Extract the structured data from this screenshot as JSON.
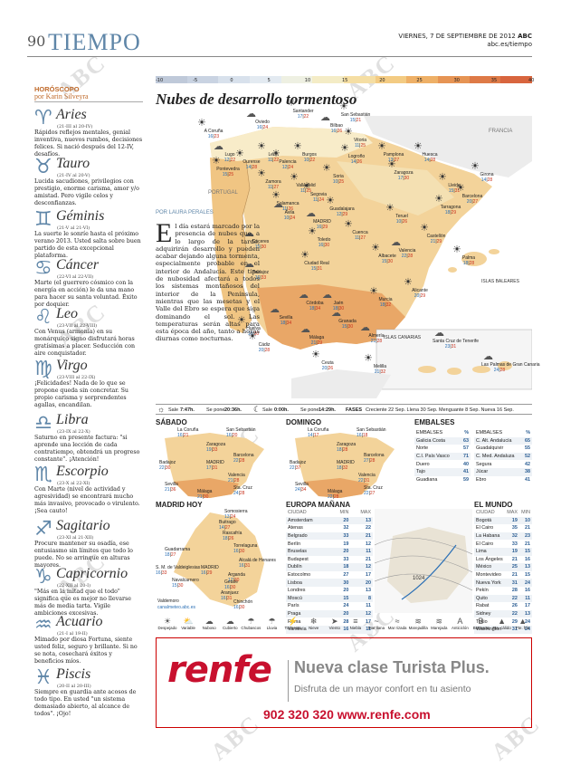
{
  "header": {
    "page_number": "90",
    "section": "TIEMPO",
    "date": "VIERNES, 7 DE SEPTIEMBRE DE 2012",
    "brand": "ABC",
    "site": "abc.es/tiempo"
  },
  "watermark": "ABC",
  "horoscope": {
    "kicker": "HORÓSCOPO",
    "author": "por Karin Silveyra",
    "signs": [
      {
        "name": "Aries",
        "symbol": "♈",
        "dates": "(21-III al 20-IV)",
        "text": "Rápidos reflejos mentales, genial inventiva, nuevos rumbos, decisiones felices. Si nació después del 12-IV, desafíos."
      },
      {
        "name": "Tauro",
        "symbol": "♉",
        "dates": "(21-IV al 20-V)",
        "text": "Lucida sacudiones, privilegios con prestigio, enorme carisma, amor y/o amistad. Pero vigile celos y desconfianzas."
      },
      {
        "name": "Géminis",
        "symbol": "♊",
        "dates": "(21-V al 21-VI)",
        "text": "La suerte le sonríe hasta el próximo verano 2013. Usted salta sobre buen partido de esta excepcional plataforma."
      },
      {
        "name": "Cáncer",
        "symbol": "♋",
        "dates": "(22-VI al 22-VII)",
        "text": "Marte (el guerrero cósmico con la energía en acción) le da una mano para hacer su santa voluntad. Éxito por doquier."
      },
      {
        "name": "Leo",
        "symbol": "♌",
        "dates": "(23-VII al 22-VIII)",
        "text": "Con Venus (armonía) en su monárquico signo disfrutará horas gratísimas a placer. Seducción con aire conquistador."
      },
      {
        "name": "Virgo",
        "symbol": "♍",
        "dates": "(23-VIII al 22-IX)",
        "text": "¡Felicidades! Nada de lo que se propone queda sin concretar. Su propio carisma y sorprendentes agallas, encandilan."
      },
      {
        "name": "Libra",
        "symbol": "♎",
        "dates": "(23-IX al 22-X)",
        "text": "Saturno en presente factura: \"si aprende una lección de cada contratiempo, obtendrá un progreso constante\". ¡Atención!"
      },
      {
        "name": "Escorpio",
        "symbol": "♏",
        "dates": "(23-X al 22-XI)",
        "text": "Con Marte (nivel de actividad y agresividad) se encontrará mucho más invasivo, provocado o virulento. ¡Sea cauto!"
      },
      {
        "name": "Sagitario",
        "symbol": "♐",
        "dates": "(23-XI al 21-XII)",
        "text": "Procure mantener su osadía, ese entusiasmo sin límites que todo lo puede. No se arrinque en alturas mayores."
      },
      {
        "name": "Capricornio",
        "symbol": "♑",
        "dates": "(22-XII al 20-I)",
        "text": "\"Más en la mitad que el todo\" significa que es mejor no llevarse más de media tarta. Vigile ambiciones excesivas."
      },
      {
        "name": "Acuario",
        "symbol": "♒",
        "dates": "(21-I al 19-II)",
        "text": "Mimado por diosa Fortuna, siente usted feliz, seguro y brillante. Si no se nota, cosechará éxitos y beneficios míos."
      },
      {
        "name": "Piscis",
        "symbol": "♓",
        "dates": "(20-II al 20-III)",
        "text": "Siempre en guardia ante acosos de todo tipo. En usted \"un sistema demasiado abierto, al alcance de todos\". ¡Ojo!"
      }
    ]
  },
  "scale": {
    "values": [
      "-10",
      "-5",
      "0",
      "5",
      "10",
      "15",
      "20",
      "25",
      "30",
      "35",
      "40"
    ],
    "colors": [
      "#bfc9d9",
      "#c9d3e2",
      "#d8e1ec",
      "#e3eaf1",
      "#eef0e2",
      "#f4ecc6",
      "#f5dea3",
      "#f3cb83",
      "#eeb067",
      "#e69454",
      "#de7a47",
      "#d8653e"
    ]
  },
  "map": {
    "title": "Nubes de desarrollo tormentoso",
    "labels": {
      "francia": "FRANCIA",
      "portugal": "PORTUGAL",
      "baleares": "ISLAS BALEARES",
      "canarias": "ISLAS CANARIAS"
    },
    "cities": [
      {
        "n": "A Coruña",
        "lo": "16",
        "hi": "23"
      },
      {
        "n": "Oviedo",
        "lo": "16",
        "hi": "24"
      },
      {
        "n": "Santander",
        "lo": "17",
        "hi": "22"
      },
      {
        "n": "Bilbao",
        "lo": "16",
        "hi": "26"
      },
      {
        "n": "San Sebastián",
        "lo": "15",
        "hi": "21"
      },
      {
        "n": "Vitoria",
        "lo": "11",
        "hi": "25"
      },
      {
        "n": "Pamplona",
        "lo": "13",
        "hi": "27"
      },
      {
        "n": "Huesca",
        "lo": "14",
        "hi": "28"
      },
      {
        "n": "Girona",
        "lo": "14",
        "hi": "28"
      },
      {
        "n": "Lleida",
        "lo": "15",
        "hi": "31"
      },
      {
        "n": "Barcelona",
        "lo": "20",
        "hi": "27"
      },
      {
        "n": "Lugo",
        "lo": "12",
        "hi": "22"
      },
      {
        "n": "León",
        "lo": "11",
        "hi": "22"
      },
      {
        "n": "Burgos",
        "lo": "10",
        "hi": "22"
      },
      {
        "n": "Logroño",
        "lo": "14",
        "hi": "26"
      },
      {
        "n": "Zaragoza",
        "lo": "17",
        "hi": "30"
      },
      {
        "n": "Tarragona",
        "lo": "18",
        "hi": "29"
      },
      {
        "n": "Pontevedra",
        "lo": "15",
        "hi": "25"
      },
      {
        "n": "Ourense",
        "lo": "14",
        "hi": "28"
      },
      {
        "n": "Palencia",
        "lo": "12",
        "hi": "24"
      },
      {
        "n": "Soria",
        "lo": "10",
        "hi": "25"
      },
      {
        "n": "Zamora",
        "lo": "11",
        "hi": "27"
      },
      {
        "n": "Valladolid",
        "lo": "11",
        "hi": "25"
      },
      {
        "n": "Segovia",
        "lo": "11",
        "hi": "24"
      },
      {
        "n": "Guadalajara",
        "lo": "12",
        "hi": "29"
      },
      {
        "n": "Teruel",
        "lo": "10",
        "hi": "26"
      },
      {
        "n": "Castellón",
        "lo": "21",
        "hi": "29"
      },
      {
        "n": "Salamanca",
        "lo": "11",
        "hi": "26"
      },
      {
        "n": "Ávila",
        "lo": "10",
        "hi": "24"
      },
      {
        "n": "MADRID",
        "lo": "16",
        "hi": "29"
      },
      {
        "n": "Cuenca",
        "lo": "11",
        "hi": "27"
      },
      {
        "n": "Valencia",
        "lo": "22",
        "hi": "28"
      },
      {
        "n": "Palma",
        "lo": "18",
        "hi": "28"
      },
      {
        "n": "Cáceres",
        "lo": "15",
        "hi": "30"
      },
      {
        "n": "Toledo",
        "lo": "16",
        "hi": "30"
      },
      {
        "n": "Ciudad Real",
        "lo": "15",
        "hi": "31"
      },
      {
        "n": "Albacete",
        "lo": "15",
        "hi": "30"
      },
      {
        "n": "Alicante",
        "lo": "20",
        "hi": "29"
      },
      {
        "n": "Badajoz",
        "lo": "16",
        "hi": "33"
      },
      {
        "n": "Córdoba",
        "lo": "18",
        "hi": "34"
      },
      {
        "n": "Jaén",
        "lo": "18",
        "hi": "30"
      },
      {
        "n": "Murcia",
        "lo": "18",
        "hi": "32"
      },
      {
        "n": "Huelva",
        "lo": "19",
        "hi": "30"
      },
      {
        "n": "Sevilla",
        "lo": "18",
        "hi": "34"
      },
      {
        "n": "Granada",
        "lo": "15",
        "hi": "30"
      },
      {
        "n": "Almería",
        "lo": "21",
        "hi": "28"
      },
      {
        "n": "Cádiz",
        "lo": "20",
        "hi": "28"
      },
      {
        "n": "Málaga",
        "lo": "21",
        "hi": "29"
      },
      {
        "n": "Ceuta",
        "lo": "20",
        "hi": "26"
      },
      {
        "n": "Melilla",
        "lo": "21",
        "hi": "32"
      },
      {
        "n": "Santa Cruz de Tenerife",
        "lo": "23",
        "hi": "31"
      },
      {
        "n": "Las Palmas de Gran Canaria",
        "lo": "24",
        "hi": "28"
      }
    ]
  },
  "article": {
    "author": "POR LAURA PERALES",
    "dropcap": "E",
    "text": "l día estará marcado por la presencia de nubes que, a lo largo de la tarde, adquirirán desarrollo y pueden acabar dejando alguna tormenta, especialmente probable en el interior de Andalucía. Este tipo de nubosidad afectará a todos los sistemas montañosos del interior de la Península, mientras que las mesetas y el Valle del Ebro se espera que siga dominando el sol. Las temperaturas serán altas para esta época del año, tanto a horas diurnas como nocturnas."
  },
  "sun": {
    "sol_label": "Sale",
    "sol_rise": "7:47h.",
    "sol_set_label": "Se pone",
    "sol_set": "20:36h.",
    "moon_label": "Sale",
    "moon_rise": "0:00h.",
    "moon_set_label": "Se pone",
    "moon_set": "14:29h.",
    "phases_label": "FASES",
    "phases": "Creciente 22 Sep.  Llena 30 Sep.  Menguante 8 Sep.  Nueva 16 Sep."
  },
  "sabado": {
    "title": "SÁBADO",
    "cities": [
      "La Coruña 16|21",
      "San Sebastián 16|20",
      "Zaragoza 19|33",
      "Barcelona 22|28",
      "Badajoz 22|30",
      "MADRID 17|31",
      "Valencia 21|28",
      "Sevilla 21|36",
      "Málaga 21|30",
      "Sta. Cruz 24|28"
    ]
  },
  "domingo": {
    "title": "DOMINGO",
    "cities": [
      "La Coruña 14|17",
      "San Sebastián 16|18",
      "Zaragoza 18|28",
      "Barcelona 27|28",
      "Badajoz 22|37",
      "MADRID 18|32",
      "Valencia 22|31",
      "Sevilla 24|34",
      "Málaga 22|28",
      "Sta. Cruz 22|27"
    ]
  },
  "embalses": {
    "title": "EMBALSES",
    "col1": [
      {
        "n": "EMBALSES",
        "v": "%"
      },
      {
        "n": "Galicia Costa",
        "v": "63"
      },
      {
        "n": "Norte",
        "v": "57"
      },
      {
        "n": "C.I. País Vasco",
        "v": "71"
      },
      {
        "n": "Duero",
        "v": "40"
      },
      {
        "n": "Tajo",
        "v": "41"
      },
      {
        "n": "Guadiana",
        "v": "59"
      }
    ],
    "col2": [
      {
        "n": "EMBALSES",
        "v": "%"
      },
      {
        "n": "C. Alt. Andalucía",
        "v": "65"
      },
      {
        "n": "Guadalquivir",
        "v": "55"
      },
      {
        "n": "C. Med. Andaluza",
        "v": "52"
      },
      {
        "n": "Segura",
        "v": "42"
      },
      {
        "n": "Júcar",
        "v": "38"
      },
      {
        "n": "Ebro",
        "v": "41"
      }
    ]
  },
  "madrid_hoy": {
    "title": "MADRID HOY",
    "cities": [
      "Somosierra 13|24",
      "Buitrago 14|27",
      "Rascafría 18|26",
      "Torrelaguna 16|30",
      "Guadarrama 18|27",
      "Alcalá de Henares 16|31",
      "S. M. de Valdeiglesias 16|33",
      "MADRID 16|29",
      "Navalcarnero 15|30",
      "Getafe 16|30",
      "Arganda 17|30",
      "Aranjuez 16|31",
      "Chinchón 16|30"
    ],
    "source": "Valdemoro",
    "source2": "canalmeteo.abc.es"
  },
  "europa": {
    "title": "EUROPA MAÑANA",
    "head": [
      "CIUDAD",
      "MIN",
      "MAX"
    ],
    "rows": [
      [
        "Amsterdam",
        "20",
        "13"
      ],
      [
        "Atenas",
        "32",
        "22"
      ],
      [
        "Belgrado",
        "33",
        "21"
      ],
      [
        "Berlín",
        "19",
        "12"
      ],
      [
        "Bruselas",
        "20",
        "11"
      ],
      [
        "Budapest",
        "33",
        "21"
      ],
      [
        "Dublín",
        "18",
        "12"
      ],
      [
        "Estocolmo",
        "27",
        "17"
      ],
      [
        "Lisboa",
        "30",
        "20"
      ],
      [
        "Londres",
        "20",
        "13"
      ],
      [
        "Moscú",
        "15",
        "8"
      ],
      [
        "París",
        "24",
        "11"
      ],
      [
        "Praga",
        "20",
        "12"
      ],
      [
        "Roma",
        "28",
        "17"
      ],
      [
        "Varsovia",
        "16",
        "11"
      ]
    ]
  },
  "mundo": {
    "title": "EL MUNDO",
    "head": [
      "CIUDAD",
      "MAX",
      "MIN"
    ],
    "rows": [
      [
        "Bogotá",
        "19",
        "10"
      ],
      [
        "El Cairo",
        "35",
        "21"
      ],
      [
        "La Habana",
        "32",
        "23"
      ],
      [
        "El Cairo",
        "33",
        "21"
      ],
      [
        "Lima",
        "19",
        "15"
      ],
      [
        "Los Ángeles",
        "21",
        "16"
      ],
      [
        "México",
        "25",
        "13"
      ],
      [
        "Montevideo",
        "21",
        "15"
      ],
      [
        "Nueva York",
        "31",
        "24"
      ],
      [
        "Pekín",
        "28",
        "16"
      ],
      [
        "Quito",
        "22",
        "11"
      ],
      [
        "Rabat",
        "26",
        "17"
      ],
      [
        "Sidney",
        "22",
        "13"
      ],
      [
        "Tokio",
        "29",
        "24"
      ],
      [
        "Washington",
        "31",
        "24"
      ]
    ]
  },
  "legend": [
    "Despejado",
    "Variable",
    "Nuboso",
    "Cubierto",
    "Chubascos",
    "Lluvia",
    "Tormenta",
    "Nieve",
    "Viento",
    "Niebla",
    "Mar llana",
    "Mar rizada",
    "Marejadilla",
    "Marejada",
    "Anticiclón",
    "Borrasca",
    "Fte. cálido",
    "Fte. frío"
  ],
  "ad": {
    "logo": "renfe",
    "headline": "Nueva clase Turista Plus.",
    "sub": "Disfruta de un mayor confort en tu asiento",
    "phone": "902 320 320 www.renfe.com"
  }
}
